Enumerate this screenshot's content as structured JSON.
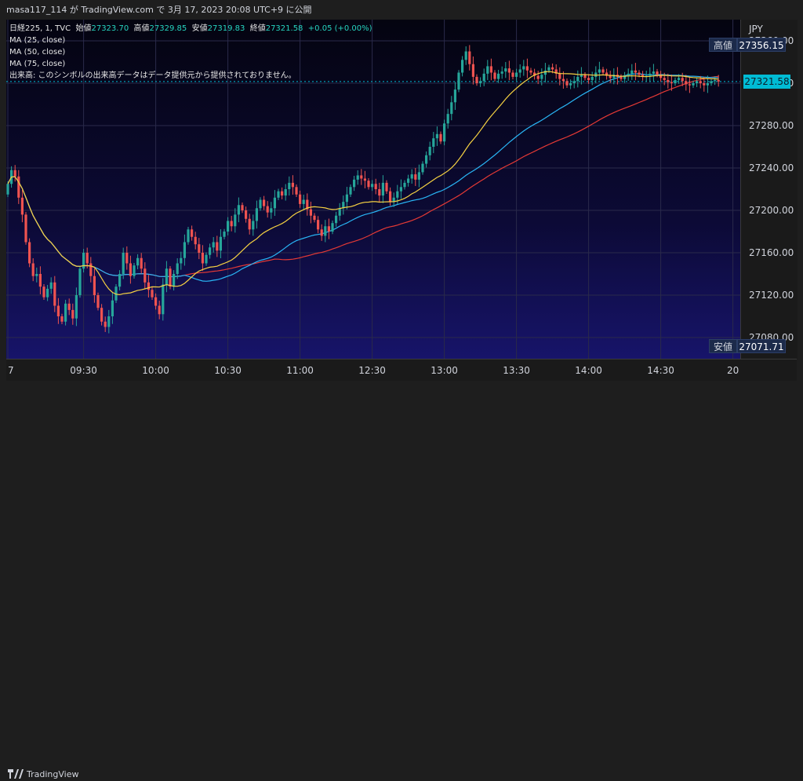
{
  "header": {
    "publish_text": "masa117_114 が TradingView.com で 3月 17, 2023 20:08 UTC+9 に公開"
  },
  "legend": {
    "symbol": "日経225, 1, TVC",
    "open_label": "始値",
    "open_value": "27323.70",
    "high_label": "高値",
    "high_value": "27329.85",
    "low_label": "安値",
    "low_value": "27319.83",
    "close_label": "終値",
    "close_value": "27321.58",
    "change": "+0.05 (+0.00%)",
    "ma_lines": [
      "MA (25, close)",
      "MA (50, close)",
      "MA (75, close)"
    ],
    "volume_note": "出来高: このシンボルの出来高データはデータ提供元から提供されておりません。"
  },
  "price_scale": {
    "currency": "JPY",
    "high_tag_label": "高値",
    "high_tag_value": "27356.15",
    "last_price_tag": "27321.58",
    "low_tag_label": "安値",
    "low_tag_value": "27071.71"
  },
  "footer": {
    "brand": "TradingView"
  },
  "colors": {
    "up": "#26a69a",
    "down": "#ef5350",
    "ma25": "#f5d142",
    "ma50": "#29b6f6",
    "ma75": "#e53935",
    "last_price": "#00bcd4",
    "tag_bg": "#1c2a4a"
  },
  "chart_data": {
    "type": "candlestick",
    "ylim": [
      27060,
      27380
    ],
    "y_ticks": [
      27080,
      27120,
      27160,
      27200,
      27240,
      27280,
      27320,
      27360
    ],
    "y_tick_labels": [
      "27080.00",
      "27120.00",
      "27160.00",
      "27200.00",
      "27240.00",
      "27280.00",
      "27320.00",
      "27360.00"
    ],
    "x_tick_labels": [
      {
        "label": "7",
        "bar": 0
      },
      {
        "label": "09:30",
        "bar": 21
      },
      {
        "label": "10:00",
        "bar": 41
      },
      {
        "label": "10:30",
        "bar": 61
      },
      {
        "label": "11:00",
        "bar": 81
      },
      {
        "label": "12:30",
        "bar": 101
      },
      {
        "label": "13:00",
        "bar": 121
      },
      {
        "label": "13:30",
        "bar": 141
      },
      {
        "label": "14:00",
        "bar": 161
      },
      {
        "label": "14:30",
        "bar": 181
      },
      {
        "label": "20",
        "bar": 201
      }
    ],
    "high": 27356.15,
    "low": 27071.71,
    "last": 27321.58,
    "series": [
      {
        "name": "MA (25, close)",
        "key": "ma25"
      },
      {
        "name": "MA (50, close)",
        "key": "ma50"
      },
      {
        "name": "MA (75, close)",
        "key": "ma75"
      }
    ],
    "close": [
      27225,
      27238,
      27232,
      27212,
      27196,
      27170,
      27150,
      27138,
      27140,
      27128,
      27118,
      27126,
      27132,
      27110,
      27100,
      27095,
      27112,
      27106,
      27098,
      27120,
      27145,
      27160,
      27150,
      27138,
      27120,
      27108,
      27095,
      27090,
      27100,
      27115,
      27128,
      27140,
      27160,
      27150,
      27138,
      27148,
      27155,
      27145,
      27132,
      27125,
      27118,
      27110,
      27102,
      27130,
      27145,
      27128,
      27140,
      27150,
      27155,
      27170,
      27182,
      27175,
      27168,
      27160,
      27150,
      27158,
      27165,
      27170,
      27162,
      27175,
      27180,
      27190,
      27185,
      27196,
      27205,
      27200,
      27192,
      27182,
      27190,
      27202,
      27210,
      27204,
      27198,
      27202,
      27212,
      27218,
      27214,
      27220,
      27226,
      27222,
      27215,
      27206,
      27210,
      27201,
      27195,
      27191,
      27182,
      27176,
      27185,
      27180,
      27188,
      27195,
      27202,
      27208,
      27215,
      27222,
      27229,
      27233,
      27230,
      27228,
      27222,
      27225,
      27220,
      27214,
      27226,
      27218,
      27208,
      27212,
      27218,
      27222,
      27226,
      27230,
      27234,
      27229,
      27236,
      27244,
      27252,
      27260,
      27268,
      27272,
      27265,
      27282,
      27291,
      27302,
      27314,
      27330,
      27342,
      27350,
      27338,
      27326,
      27320,
      27322,
      27329,
      27336,
      27330,
      27324,
      27329,
      27331,
      27334,
      27330,
      27326,
      27330,
      27333,
      27336,
      27332,
      27330,
      27327,
      27324,
      27328,
      27332,
      27335,
      27333,
      27329,
      27324,
      27322,
      27318,
      27320,
      27322,
      27326,
      27328,
      27325,
      27323,
      27326,
      27330,
      27333,
      27330,
      27327,
      27325,
      27328,
      27326,
      27324,
      27327,
      27329,
      27332,
      27330,
      27328,
      27326,
      27327,
      27329,
      27331,
      27328,
      27325,
      27323,
      27321,
      27320,
      27323,
      27325,
      27322,
      27319,
      27318,
      27320,
      27322,
      27320,
      27318,
      27320,
      27322,
      27323,
      27321.58
    ]
  }
}
